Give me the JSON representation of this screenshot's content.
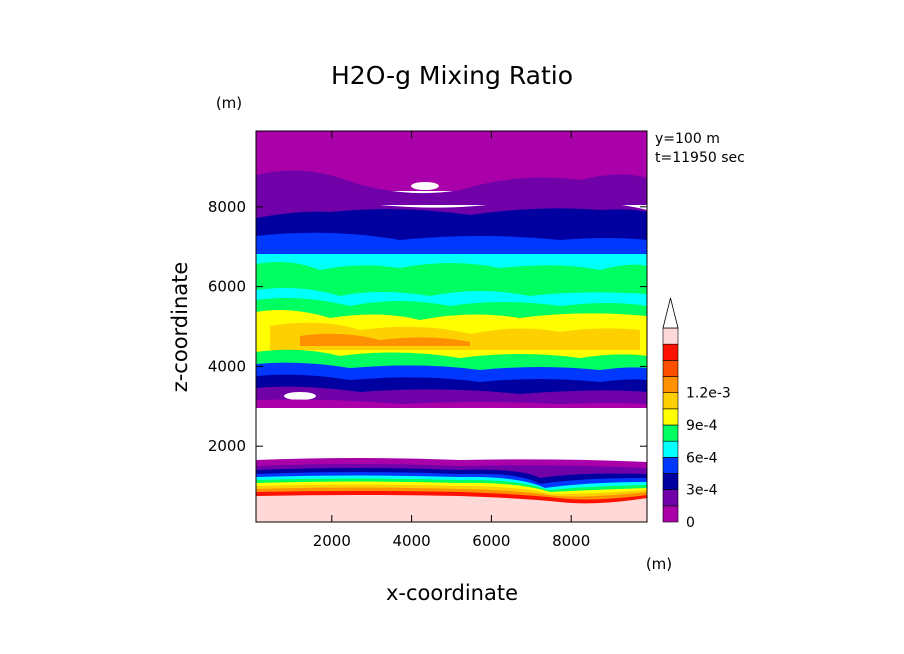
{
  "chart_data": {
    "type": "heatmap",
    "title": "H2O-g Mixing Ratio",
    "xlabel": "x-coordinate",
    "ylabel": "z-coordinate",
    "x_unit": "(m)",
    "y_unit": "(m)",
    "xlim": [
      100,
      9900
    ],
    "ylim": [
      100,
      9900
    ],
    "x_ticks": [
      2000,
      4000,
      6000,
      8000
    ],
    "y_ticks": [
      2000,
      4000,
      6000,
      8000
    ],
    "x_tick_labels": [
      "2000",
      "4000",
      "6000",
      "8000"
    ],
    "y_tick_labels": [
      "2000",
      "4000",
      "6000",
      "8000"
    ],
    "annotations": [
      "y=100 m",
      "t=11950 sec"
    ],
    "colorbar": {
      "levels": [
        0,
        0.00015,
        0.0003,
        0.00045,
        0.0006,
        0.00075,
        0.0009,
        0.00105,
        0.0012
      ],
      "tick_values": [
        0,
        0.0003,
        0.0006,
        0.0009,
        0.0012
      ],
      "tick_labels": [
        "0",
        "3e-4",
        "6e-4",
        "9e-4",
        "1.2e-3"
      ],
      "colors": [
        "#aa00aa",
        "#7000a8",
        "#0000a0",
        "#0038ff",
        "#00ffff",
        "#00ff60",
        "#ffff00",
        "#ffd000",
        "#ff9000",
        "#ff5000",
        "#ff1000",
        "#ffd8d8"
      ],
      "extend": "max"
    },
    "layers": [
      {
        "z_bottom": 100,
        "z_top": 600,
        "value_band": "above 1.2e-3",
        "color": "#ffd8d8"
      },
      {
        "z_bottom": 600,
        "z_top": 1700,
        "value_band": "graded 0 to 1.2e-3",
        "color": "#ff5000"
      },
      {
        "z_bottom": 1700,
        "z_top": 3000,
        "value_band": "below 0",
        "color": "#ffffff"
      },
      {
        "z_bottom": 3000,
        "z_top": 4000,
        "value_band": "0 to 4.5e-4",
        "color": "#0000a0"
      },
      {
        "z_bottom": 4000,
        "z_top": 6000,
        "value_band": "4.5e-4 to 9e-4",
        "color": "#ffff00"
      },
      {
        "z_bottom": 6000,
        "z_top": 7500,
        "value_band": "3e-4 to 4.5e-4",
        "color": "#00ffff"
      },
      {
        "z_bottom": 7500,
        "z_top": 9900,
        "value_band": "0 to 3e-4",
        "color": "#aa00aa"
      }
    ]
  }
}
